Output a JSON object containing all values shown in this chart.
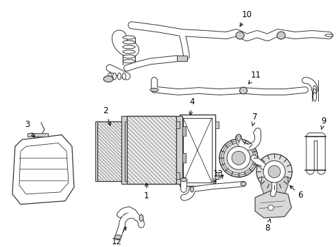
{
  "bg_color": "#ffffff",
  "line_color": "#333333",
  "label_color": "#000000",
  "label_fontsize": 8.5,
  "fig_width": 4.9,
  "fig_height": 3.6,
  "dpi": 100
}
